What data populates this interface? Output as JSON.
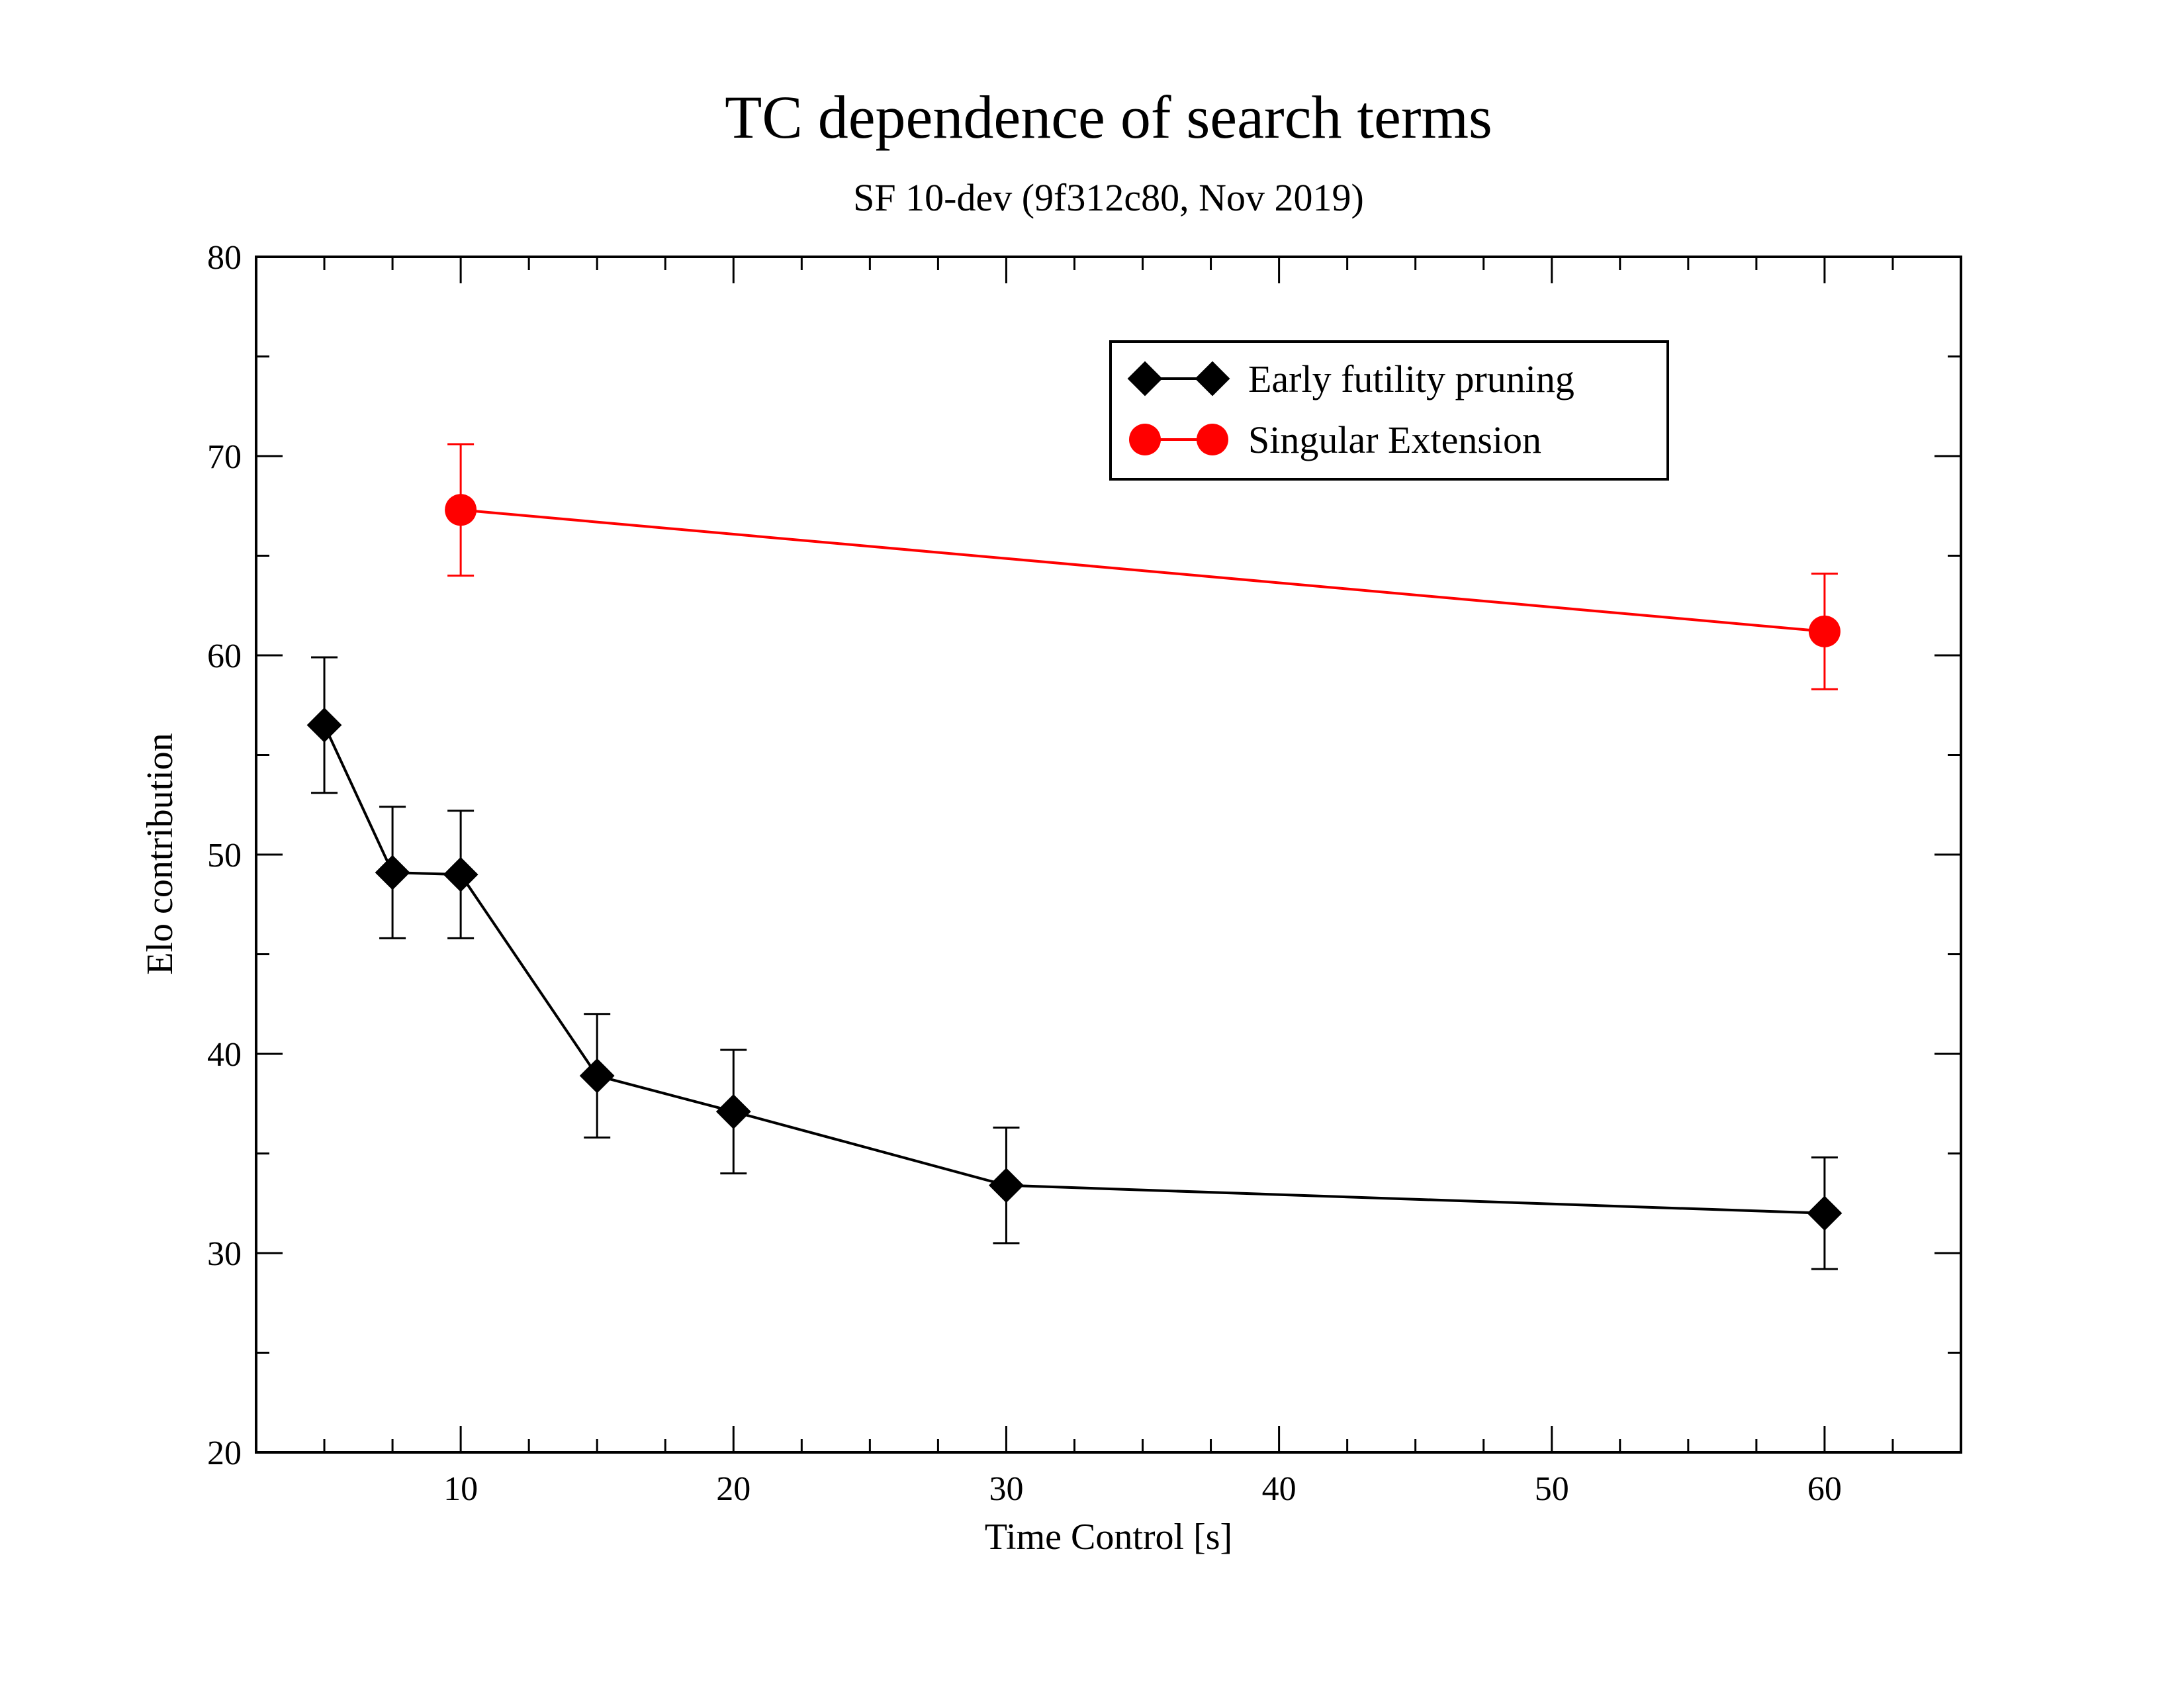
{
  "chart_data": {
    "type": "line",
    "title": "TC dependence of search terms",
    "subtitle": "SF 10-dev (9f312c80, Nov 2019)",
    "xlabel": "Time Control [s]",
    "ylabel": "Elo contribution",
    "xlim": [
      2.5,
      65
    ],
    "ylim": [
      20,
      80
    ],
    "x_major_ticks": [
      10,
      20,
      30,
      40,
      50,
      60
    ],
    "x_minor_step": 2.5,
    "y_major_ticks": [
      20,
      30,
      40,
      50,
      60,
      70,
      80
    ],
    "y_minor_step": 5,
    "grid": false,
    "legend_position": "top-right",
    "series": [
      {
        "name": "Early futility pruning",
        "color": "#000000",
        "marker": "diamond",
        "x": [
          5,
          7.5,
          10,
          15,
          20,
          30,
          60
        ],
        "y": [
          56.5,
          49.1,
          49.0,
          38.9,
          37.1,
          33.4,
          32.0
        ],
        "err": [
          3.4,
          3.3,
          3.2,
          3.1,
          3.1,
          2.9,
          2.8
        ]
      },
      {
        "name": "Singular Extension",
        "color": "#ff0000",
        "marker": "circle",
        "x": [
          10,
          60
        ],
        "y": [
          67.3,
          61.2
        ],
        "err": [
          3.3,
          2.9
        ]
      }
    ]
  }
}
